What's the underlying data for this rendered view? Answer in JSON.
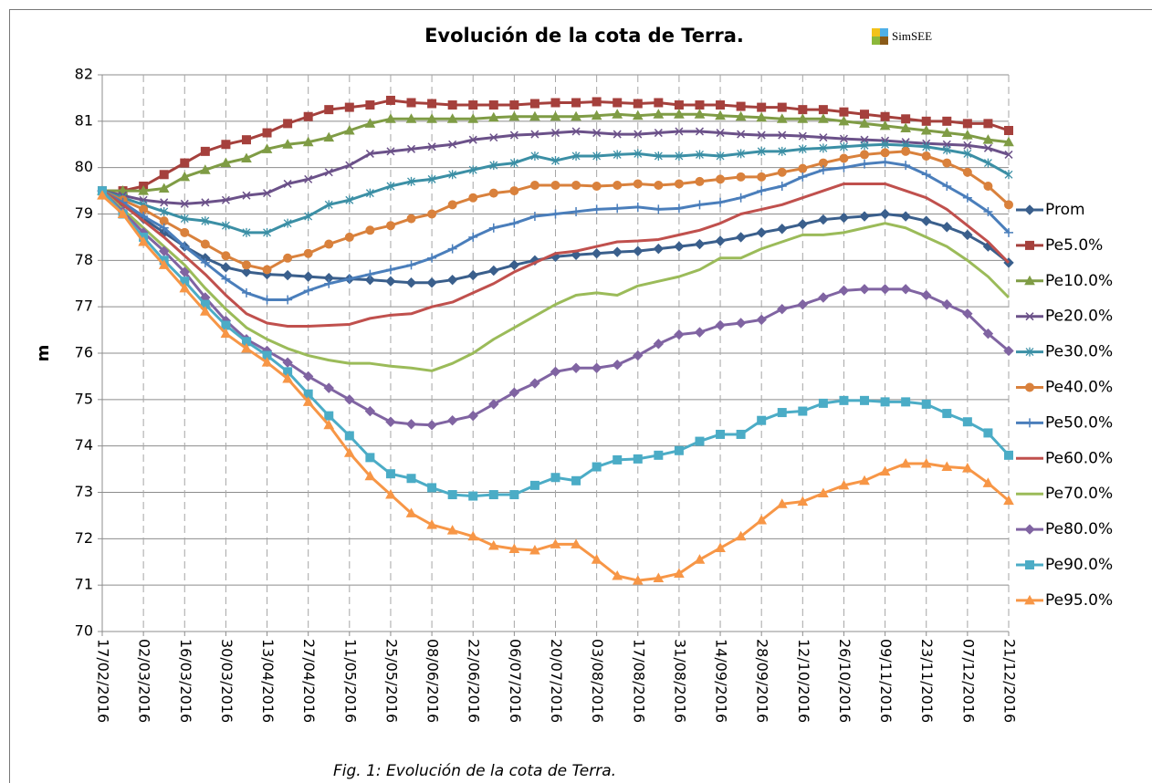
{
  "chart_data": {
    "type": "line",
    "title": "Evolución de la cota de Terra.",
    "logo": "SimSEE",
    "caption": "Fig. 1: Evolución de la cota de Terra.",
    "y_label": "m",
    "categories": [
      "17/02/2016",
      null,
      "02/03/2016",
      null,
      "16/03/2016",
      null,
      "30/03/2016",
      null,
      "13/04/2016",
      null,
      "27/04/2016",
      null,
      "11/05/2016",
      null,
      "25/05/2016",
      null,
      "08/06/2016",
      null,
      "22/06/2016",
      null,
      "06/07/2016",
      null,
      "20/07/2016",
      null,
      "03/08/2016",
      null,
      "17/08/2016",
      null,
      "31/08/2016",
      null,
      "14/09/2016",
      null,
      "28/09/2016",
      null,
      "12/10/2016",
      null,
      "26/10/2016",
      null,
      "09/11/2016",
      null,
      "23/11/2016",
      null,
      "07/12/2016",
      null,
      "21/12/2016"
    ],
    "ylim": [
      70,
      82
    ],
    "yticks": [
      70,
      71,
      72,
      73,
      74,
      75,
      76,
      77,
      78,
      79,
      80,
      81,
      82
    ],
    "grid": true,
    "legend": "right",
    "series": [
      {
        "name": "Prom",
        "color": "#3a5f8c",
        "marker": "diamond",
        "values": [
          79.5,
          79.2,
          78.9,
          78.6,
          78.3,
          78.05,
          77.85,
          77.75,
          77.7,
          77.68,
          77.65,
          77.62,
          77.6,
          77.58,
          77.55,
          77.52,
          77.52,
          77.58,
          77.68,
          77.78,
          77.9,
          78.0,
          78.08,
          78.12,
          78.15,
          78.18,
          78.2,
          78.25,
          78.3,
          78.35,
          78.42,
          78.5,
          78.6,
          78.68,
          78.78,
          78.88,
          78.92,
          78.95,
          79.0,
          78.95,
          78.85,
          78.72,
          78.55,
          78.3,
          77.95
        ]
      },
      {
        "name": "Pe5.0%",
        "color": "#a5403c",
        "marker": "square",
        "values": [
          79.5,
          79.5,
          79.6,
          79.85,
          80.1,
          80.35,
          80.5,
          80.6,
          80.75,
          80.95,
          81.1,
          81.25,
          81.3,
          81.35,
          81.45,
          81.4,
          81.38,
          81.35,
          81.35,
          81.35,
          81.35,
          81.38,
          81.4,
          81.4,
          81.42,
          81.4,
          81.38,
          81.4,
          81.35,
          81.35,
          81.35,
          81.32,
          81.3,
          81.3,
          81.25,
          81.25,
          81.2,
          81.15,
          81.1,
          81.05,
          81.0,
          81.0,
          80.95,
          80.95,
          80.8
        ]
      },
      {
        "name": "Pe10.0%",
        "color": "#7f9c45",
        "marker": "triangle",
        "values": [
          79.5,
          79.5,
          79.5,
          79.55,
          79.8,
          79.95,
          80.1,
          80.2,
          80.4,
          80.5,
          80.55,
          80.65,
          80.8,
          80.95,
          81.05,
          81.05,
          81.05,
          81.05,
          81.05,
          81.08,
          81.1,
          81.1,
          81.1,
          81.1,
          81.12,
          81.15,
          81.12,
          81.15,
          81.15,
          81.15,
          81.12,
          81.1,
          81.08,
          81.05,
          81.05,
          81.05,
          81.0,
          80.95,
          80.9,
          80.85,
          80.8,
          80.75,
          80.7,
          80.6,
          80.55
        ]
      },
      {
        "name": "Pe20.0%",
        "color": "#6b5189",
        "marker": "x",
        "values": [
          79.5,
          79.4,
          79.3,
          79.25,
          79.22,
          79.25,
          79.3,
          79.4,
          79.45,
          79.65,
          79.75,
          79.9,
          80.05,
          80.3,
          80.35,
          80.4,
          80.45,
          80.5,
          80.6,
          80.65,
          80.7,
          80.72,
          80.75,
          80.78,
          80.75,
          80.72,
          80.72,
          80.75,
          80.78,
          80.78,
          80.75,
          80.72,
          80.7,
          80.7,
          80.68,
          80.65,
          80.62,
          80.6,
          80.58,
          80.55,
          80.52,
          80.5,
          80.48,
          80.42,
          80.28
        ]
      },
      {
        "name": "Pe30.0%",
        "color": "#3b8fa5",
        "marker": "star",
        "values": [
          79.5,
          79.35,
          79.2,
          79.05,
          78.9,
          78.85,
          78.75,
          78.6,
          78.6,
          78.8,
          78.95,
          79.2,
          79.3,
          79.45,
          79.6,
          79.7,
          79.75,
          79.85,
          79.95,
          80.05,
          80.1,
          80.25,
          80.15,
          80.25,
          80.25,
          80.28,
          80.3,
          80.25,
          80.25,
          80.28,
          80.25,
          80.3,
          80.35,
          80.35,
          80.4,
          80.42,
          80.45,
          80.48,
          80.5,
          80.48,
          80.45,
          80.38,
          80.3,
          80.1,
          79.85
        ]
      },
      {
        "name": "Pe40.0%",
        "color": "#d9813c",
        "marker": "circle",
        "values": [
          79.5,
          79.3,
          79.1,
          78.85,
          78.6,
          78.35,
          78.1,
          77.9,
          77.8,
          78.05,
          78.15,
          78.35,
          78.5,
          78.65,
          78.75,
          78.9,
          79.0,
          79.2,
          79.35,
          79.45,
          79.5,
          79.62,
          79.62,
          79.62,
          79.6,
          79.62,
          79.65,
          79.62,
          79.65,
          79.7,
          79.75,
          79.8,
          79.8,
          79.9,
          79.98,
          80.1,
          80.2,
          80.28,
          80.32,
          80.35,
          80.25,
          80.1,
          79.9,
          79.6,
          79.2
        ]
      },
      {
        "name": "Pe50.0%",
        "color": "#4a7ebb",
        "marker": "plus",
        "values": [
          79.5,
          79.25,
          78.95,
          78.7,
          78.3,
          77.95,
          77.6,
          77.3,
          77.15,
          77.15,
          77.35,
          77.5,
          77.6,
          77.7,
          77.8,
          77.9,
          78.05,
          78.25,
          78.5,
          78.7,
          78.8,
          78.95,
          79.0,
          79.05,
          79.1,
          79.12,
          79.15,
          79.1,
          79.12,
          79.2,
          79.25,
          79.35,
          79.5,
          79.6,
          79.8,
          79.95,
          80.0,
          80.08,
          80.12,
          80.05,
          79.85,
          79.6,
          79.35,
          79.05,
          78.6
        ]
      },
      {
        "name": "Pe60.0%",
        "color": "#c0504d",
        "marker": "none",
        "values": [
          79.5,
          79.2,
          78.85,
          78.5,
          78.1,
          77.7,
          77.25,
          76.85,
          76.65,
          76.58,
          76.58,
          76.6,
          76.62,
          76.75,
          76.82,
          76.85,
          77.0,
          77.1,
          77.3,
          77.5,
          77.75,
          77.95,
          78.15,
          78.2,
          78.3,
          78.4,
          78.42,
          78.45,
          78.55,
          78.65,
          78.8,
          79.0,
          79.1,
          79.2,
          79.35,
          79.5,
          79.65,
          79.65,
          79.65,
          79.5,
          79.35,
          79.1,
          78.75,
          78.4,
          77.95
        ]
      },
      {
        "name": "Pe70.0%",
        "color": "#9bbb59",
        "marker": "none",
        "values": [
          79.5,
          79.1,
          78.7,
          78.3,
          77.9,
          77.4,
          76.95,
          76.55,
          76.3,
          76.1,
          75.95,
          75.85,
          75.78,
          75.78,
          75.72,
          75.68,
          75.62,
          75.78,
          76.0,
          76.3,
          76.55,
          76.8,
          77.05,
          77.25,
          77.3,
          77.25,
          77.45,
          77.55,
          77.65,
          77.8,
          78.05,
          78.05,
          78.25,
          78.4,
          78.55,
          78.55,
          78.6,
          78.7,
          78.8,
          78.7,
          78.5,
          78.3,
          78.0,
          77.65,
          77.2
        ]
      },
      {
        "name": "Pe80.0%",
        "color": "#8064a2",
        "marker": "diamond",
        "values": [
          79.5,
          79.05,
          78.6,
          78.2,
          77.75,
          77.2,
          76.7,
          76.3,
          76.05,
          75.8,
          75.5,
          75.25,
          75.0,
          74.75,
          74.52,
          74.47,
          74.45,
          74.55,
          74.65,
          74.9,
          75.15,
          75.35,
          75.6,
          75.68,
          75.68,
          75.75,
          75.95,
          76.2,
          76.4,
          76.45,
          76.6,
          76.65,
          76.72,
          76.95,
          77.05,
          77.2,
          77.35,
          77.38,
          77.38,
          77.38,
          77.25,
          77.05,
          76.85,
          76.42,
          76.05
        ]
      },
      {
        "name": "Pe90.0%",
        "color": "#4bacc6",
        "marker": "square",
        "values": [
          79.5,
          79.0,
          78.5,
          78.0,
          77.55,
          77.05,
          76.6,
          76.25,
          75.95,
          75.6,
          75.12,
          74.65,
          74.22,
          73.75,
          73.4,
          73.3,
          73.1,
          72.95,
          72.92,
          72.95,
          72.95,
          73.15,
          73.32,
          73.25,
          73.55,
          73.7,
          73.72,
          73.8,
          73.9,
          74.1,
          74.25,
          74.25,
          74.55,
          74.72,
          74.75,
          74.92,
          74.98,
          74.98,
          74.95,
          74.95,
          74.9,
          74.7,
          74.52,
          74.28,
          73.8
        ]
      },
      {
        "name": "Pe95.0%",
        "color": "#f79646",
        "marker": "triangle",
        "values": [
          79.4,
          79.0,
          78.4,
          77.9,
          77.4,
          76.9,
          76.42,
          76.1,
          75.8,
          75.45,
          74.95,
          74.45,
          73.85,
          73.35,
          72.95,
          72.55,
          72.3,
          72.18,
          72.05,
          71.85,
          71.78,
          71.75,
          71.88,
          71.88,
          71.55,
          71.2,
          71.1,
          71.15,
          71.25,
          71.55,
          71.8,
          72.05,
          72.4,
          72.75,
          72.8,
          72.98,
          73.15,
          73.25,
          73.45,
          73.62,
          73.62,
          73.55,
          73.52,
          73.2,
          72.82
        ]
      }
    ]
  }
}
